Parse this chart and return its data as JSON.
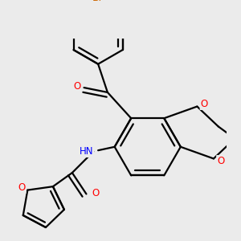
{
  "bg_color": "#ebebeb",
  "bond_color": "#000000",
  "bond_width": 1.6,
  "atom_colors": {
    "O": "#ff0000",
    "N": "#0000ff",
    "Br": "#cc6600",
    "C": "#000000"
  },
  "font_size": 8.5,
  "figsize": [
    3.0,
    3.0
  ],
  "dpi": 100
}
